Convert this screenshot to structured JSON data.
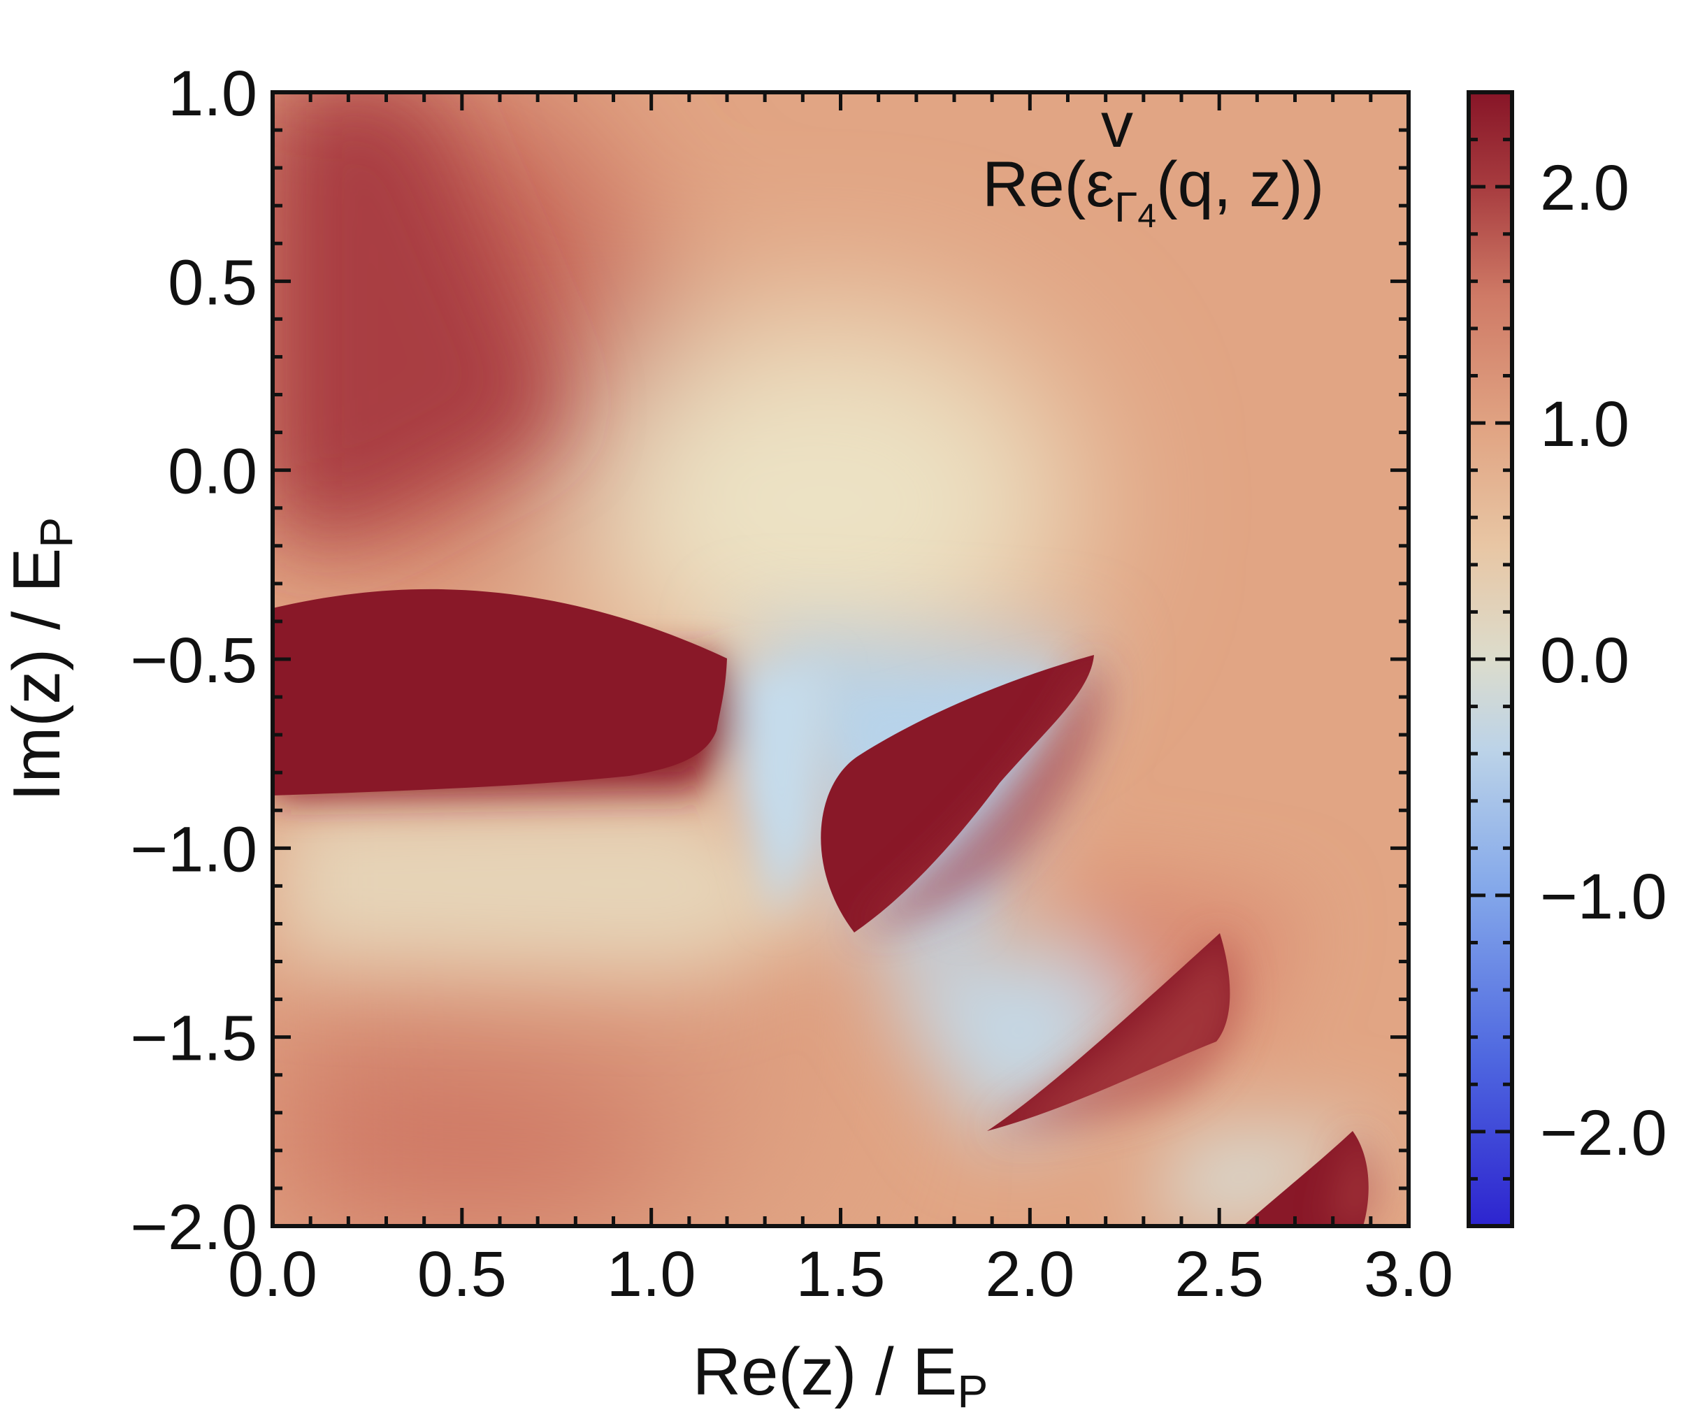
{
  "chart_data": {
    "type": "heatmap",
    "title": "",
    "annotation": {
      "prefix": "Re(",
      "symbol": "ε",
      "accent": "v",
      "subscript": "Γ",
      "subsubscript": "4",
      "suffix": "(q, z))"
    },
    "xlabel": {
      "main": "Re(z) / E",
      "sub": "P"
    },
    "ylabel": {
      "main": "Im(z) / E",
      "sub": "P"
    },
    "xlim": [
      0.0,
      3.0
    ],
    "ylim": [
      -2.0,
      1.0
    ],
    "x_ticks": [
      "0.0",
      "0.5",
      "1.0",
      "1.5",
      "2.0",
      "2.5",
      "3.0"
    ],
    "y_ticks": [
      "1.0",
      "0.5",
      "0.0",
      "−0.5",
      "−1.0",
      "−1.5",
      "−2.0"
    ],
    "colorbar": {
      "range": [
        -2.4,
        2.4
      ],
      "ticks": [
        "2.0",
        "1.0",
        "0.0",
        "−1.0",
        "−2.0"
      ],
      "colormap": "coolwarm"
    },
    "colors": {
      "dark_red": "#891828",
      "red": "#c45a4f",
      "peach": "#e1a584",
      "light_peach": "#e8c6a4",
      "neutral": "#ddddcc",
      "light_blue": "#bcd6ea",
      "blue": "#6f93e6",
      "dark_blue": "#2d24cf"
    },
    "features": {
      "branch_points": [
        {
          "re": 1.21,
          "im": -0.49
        },
        {
          "re": 2.18,
          "im": -0.49
        },
        {
          "re": 1.54,
          "im": -1.22
        },
        {
          "re": 2.51,
          "im": -1.22
        },
        {
          "re": 1.88,
          "im": -1.73
        },
        {
          "re": 2.85,
          "im": -1.73
        }
      ],
      "dark_regions": [
        "upper-left region (Re < 1.21, Im between -0.85 and -0.49)",
        "wedge between (1.54, -1.22) and (2.18, -0.49)",
        "strip between (1.88, -1.73) and (2.51, -1.22)",
        "strip between (2.62, -2.0) and (2.85, -1.73)"
      ]
    }
  }
}
